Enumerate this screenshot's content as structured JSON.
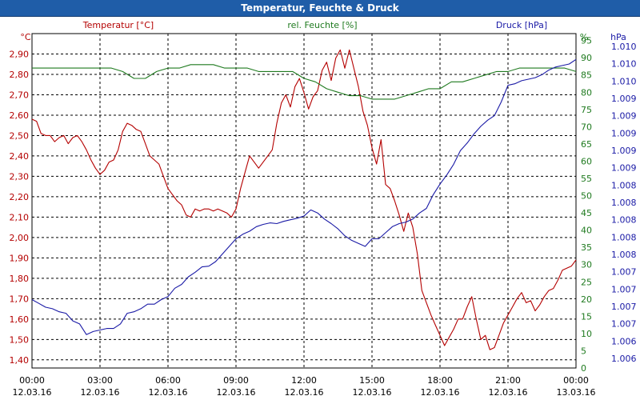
{
  "window": {
    "title": "Temperatur, Feuchte & Druck"
  },
  "colors": {
    "temperature": "#b40000",
    "humidity": "#1f7a1f",
    "pressure": "#1a1aa6",
    "grid": "#000000",
    "titlebar": "#1f5da8"
  },
  "chart_data": {
    "type": "line",
    "title": "Temperatur, Feuchte & Druck",
    "x_ticks": [
      {
        "time": "00:00",
        "date": "12.03.16"
      },
      {
        "time": "03:00",
        "date": "12.03.16"
      },
      {
        "time": "06:00",
        "date": "12.03.16"
      },
      {
        "time": "09:00",
        "date": "12.03.16"
      },
      {
        "time": "12:00",
        "date": "12.03.16"
      },
      {
        "time": "15:00",
        "date": "12.03.16"
      },
      {
        "time": "18:00",
        "date": "12.03.16"
      },
      {
        "time": "21:00",
        "date": "12.03.16"
      },
      {
        "time": "00:00",
        "date": "13.03.16"
      }
    ],
    "xlim_hours": [
      0,
      24
    ],
    "grid": true,
    "axes": {
      "temperature": {
        "unit": "°C",
        "legend": "Temperatur [°C]",
        "range": [
          1.36,
          3.0
        ],
        "ticks": [
          "2,90",
          "2,80",
          "2,70",
          "2,60",
          "2,50",
          "2,40",
          "2,30",
          "2,20",
          "2,10",
          "2,00",
          "1,90",
          "1,80",
          "1,70",
          "1,60",
          "1,50",
          "1,40"
        ]
      },
      "humidity": {
        "unit": "%",
        "legend": "rel. Feuchte [%]",
        "range": [
          0,
          97
        ],
        "ticks": [
          "95",
          "90",
          "85",
          "80",
          "75",
          "70",
          "65",
          "60",
          "55",
          "50",
          "45",
          "40",
          "35",
          "30",
          "25",
          "20",
          "15",
          "10",
          "5",
          "0"
        ]
      },
      "pressure": {
        "unit": "hPa",
        "legend": "Druck [hPa]",
        "range": [
          1006.0,
          1010.4
        ],
        "ticks": [
          "1.010",
          "1.010",
          "1.010",
          "1.009",
          "1.009",
          "1.009",
          "1.009",
          "1.009",
          "1.008",
          "1.008",
          "1.008",
          "1.008",
          "1.008",
          "1.007",
          "1.007",
          "1.007",
          "1.007",
          "1.006",
          "1.006"
        ]
      }
    },
    "series": [
      {
        "name": "Temperatur [°C]",
        "axis": "temperature",
        "x_hours": [
          0,
          0.2,
          0.4,
          0.6,
          0.8,
          1.0,
          1.2,
          1.4,
          1.6,
          1.8,
          2.0,
          2.2,
          2.4,
          2.6,
          2.8,
          3.0,
          3.2,
          3.4,
          3.6,
          3.8,
          4.0,
          4.2,
          4.4,
          4.6,
          4.8,
          5.0,
          5.2,
          5.4,
          5.6,
          5.8,
          6.0,
          6.2,
          6.4,
          6.6,
          6.8,
          7.0,
          7.2,
          7.4,
          7.6,
          7.8,
          8.0,
          8.2,
          8.4,
          8.6,
          8.8,
          9.0,
          9.2,
          9.4,
          9.6,
          9.8,
          10.0,
          10.2,
          10.4,
          10.6,
          10.8,
          11.0,
          11.2,
          11.4,
          11.6,
          11.8,
          12.0,
          12.2,
          12.4,
          12.6,
          12.8,
          13.0,
          13.2,
          13.4,
          13.6,
          13.8,
          14.0,
          14.2,
          14.4,
          14.6,
          14.8,
          15.0,
          15.2,
          15.4,
          15.6,
          15.8,
          16.0,
          16.2,
          16.4,
          16.6,
          16.8,
          17.0,
          17.2,
          17.4,
          17.6,
          17.8,
          18.0,
          18.2,
          18.4,
          18.6,
          18.8,
          19.0,
          19.2,
          19.4,
          19.6,
          19.8,
          20.0,
          20.2,
          20.4,
          20.6,
          20.8,
          21.0,
          21.2,
          21.4,
          21.6,
          21.8,
          22.0,
          22.2,
          22.4,
          22.6,
          22.8,
          23.0,
          23.2,
          23.4,
          23.6,
          23.8,
          24.0
        ],
        "values": [
          2.58,
          2.57,
          2.51,
          2.5,
          2.5,
          2.47,
          2.49,
          2.5,
          2.46,
          2.49,
          2.5,
          2.47,
          2.43,
          2.38,
          2.34,
          2.31,
          2.33,
          2.37,
          2.38,
          2.43,
          2.52,
          2.56,
          2.55,
          2.53,
          2.52,
          2.46,
          2.4,
          2.38,
          2.36,
          2.3,
          2.24,
          2.21,
          2.18,
          2.16,
          2.11,
          2.1,
          2.14,
          2.13,
          2.14,
          2.14,
          2.13,
          2.14,
          2.13,
          2.12,
          2.1,
          2.14,
          2.24,
          2.32,
          2.4,
          2.37,
          2.34,
          2.37,
          2.4,
          2.43,
          2.56,
          2.66,
          2.7,
          2.64,
          2.74,
          2.78,
          2.71,
          2.63,
          2.69,
          2.72,
          2.82,
          2.86,
          2.77,
          2.88,
          2.92,
          2.83,
          2.92,
          2.83,
          2.74,
          2.62,
          2.55,
          2.44,
          2.36,
          2.48,
          2.26,
          2.24,
          2.18,
          2.11,
          2.03,
          2.12,
          2.05,
          1.92,
          1.74,
          1.68,
          1.62,
          1.57,
          1.52,
          1.47,
          1.51,
          1.55,
          1.6,
          1.6,
          1.66,
          1.71,
          1.6,
          1.5,
          1.52,
          1.45,
          1.46,
          1.52,
          1.58,
          1.62,
          1.66,
          1.7,
          1.73,
          1.68,
          1.69,
          1.64,
          1.67,
          1.71,
          1.74,
          1.75,
          1.79,
          1.84,
          1.85,
          1.86,
          1.89
        ]
      },
      {
        "name": "rel. Feuchte [%]",
        "axis": "humidity",
        "x_hours": [
          0,
          0.5,
          1.0,
          1.5,
          2.0,
          2.5,
          3.0,
          3.5,
          4.0,
          4.5,
          5.0,
          5.5,
          6.0,
          6.5,
          7.0,
          7.5,
          8.0,
          8.5,
          9.0,
          9.5,
          10.0,
          10.5,
          11.0,
          11.5,
          12.0,
          12.5,
          13.0,
          13.5,
          14.0,
          14.5,
          15.0,
          15.5,
          16.0,
          16.5,
          17.0,
          17.5,
          18.0,
          18.5,
          19.0,
          19.5,
          20.0,
          20.5,
          21.0,
          21.5,
          22.0,
          22.5,
          23.0,
          23.5,
          24.0
        ],
        "values": [
          87,
          87,
          87,
          87,
          87,
          87,
          87,
          87,
          86,
          84,
          84,
          86,
          87,
          87,
          88,
          88,
          88,
          87,
          87,
          87,
          86,
          86,
          86,
          86,
          84,
          83,
          81,
          80,
          79,
          79,
          78,
          78,
          78,
          79,
          80,
          81,
          81,
          83,
          83,
          84,
          85,
          86,
          86,
          87,
          87,
          87,
          87,
          87,
          86
        ]
      },
      {
        "name": "Druck [hPa]",
        "axis": "pressure",
        "x_hours": [
          0,
          0.3,
          0.6,
          0.9,
          1.2,
          1.5,
          1.8,
          2.1,
          2.4,
          2.7,
          3.0,
          3.3,
          3.6,
          3.9,
          4.2,
          4.5,
          4.8,
          5.1,
          5.4,
          5.7,
          6.0,
          6.3,
          6.6,
          6.9,
          7.2,
          7.5,
          7.8,
          8.1,
          8.4,
          8.7,
          9.0,
          9.3,
          9.6,
          9.9,
          10.2,
          10.5,
          10.8,
          11.1,
          11.4,
          11.7,
          12.0,
          12.3,
          12.6,
          12.9,
          13.2,
          13.5,
          13.8,
          14.1,
          14.4,
          14.7,
          15.0,
          15.3,
          15.6,
          15.9,
          16.2,
          16.5,
          16.8,
          17.1,
          17.4,
          17.7,
          18.0,
          18.3,
          18.6,
          18.9,
          19.2,
          19.5,
          19.8,
          20.1,
          20.4,
          20.7,
          21.0,
          21.3,
          21.6,
          21.9,
          22.2,
          22.5,
          22.8,
          23.1,
          23.4,
          23.7,
          24.0
        ],
        "values": [
          1006.9,
          1006.85,
          1006.8,
          1006.78,
          1006.74,
          1006.72,
          1006.62,
          1006.58,
          1006.44,
          1006.48,
          1006.5,
          1006.52,
          1006.52,
          1006.58,
          1006.72,
          1006.74,
          1006.78,
          1006.84,
          1006.84,
          1006.9,
          1006.94,
          1007.05,
          1007.1,
          1007.2,
          1007.26,
          1007.33,
          1007.34,
          1007.4,
          1007.5,
          1007.6,
          1007.7,
          1007.76,
          1007.8,
          1007.86,
          1007.89,
          1007.91,
          1007.9,
          1007.93,
          1007.95,
          1007.97,
          1008.0,
          1008.08,
          1008.04,
          1007.96,
          1007.9,
          1007.83,
          1007.74,
          1007.68,
          1007.64,
          1007.6,
          1007.7,
          1007.7,
          1007.78,
          1007.86,
          1007.9,
          1007.92,
          1007.96,
          1008.04,
          1008.1,
          1008.28,
          1008.42,
          1008.54,
          1008.68,
          1008.86,
          1008.96,
          1009.08,
          1009.18,
          1009.26,
          1009.32,
          1009.5,
          1009.72,
          1009.74,
          1009.78,
          1009.8,
          1009.82,
          1009.86,
          1009.92,
          1009.96,
          1009.98,
          1010.0,
          1010.06
        ]
      }
    ]
  }
}
